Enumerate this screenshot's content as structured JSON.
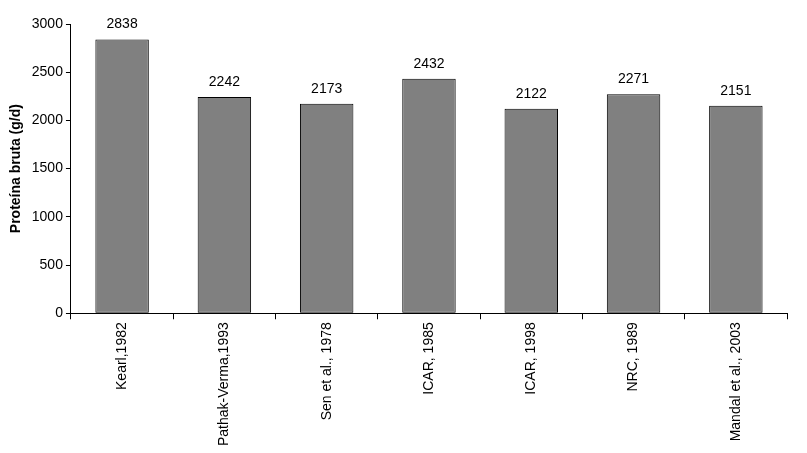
{
  "chart_data": {
    "type": "bar",
    "y_label": "Proteína bruta (g/d)",
    "categories": [
      "Kearl,1982",
      "Pathak-Verma,1993",
      "Sen et al., 1978",
      "ICAR, 1985",
      "ICAR, 1998",
      "NRC, 1989",
      "Mandal et al., 2003"
    ],
    "values": [
      2838,
      2242,
      2173,
      2432,
      2122,
      2271,
      2151
    ],
    "color": "#808080",
    "ylim": [
      0,
      3000
    ],
    "yticks": [
      0,
      500,
      1000,
      1500,
      2000,
      2500,
      3000
    ],
    "grid": false,
    "data_labels": true
  }
}
